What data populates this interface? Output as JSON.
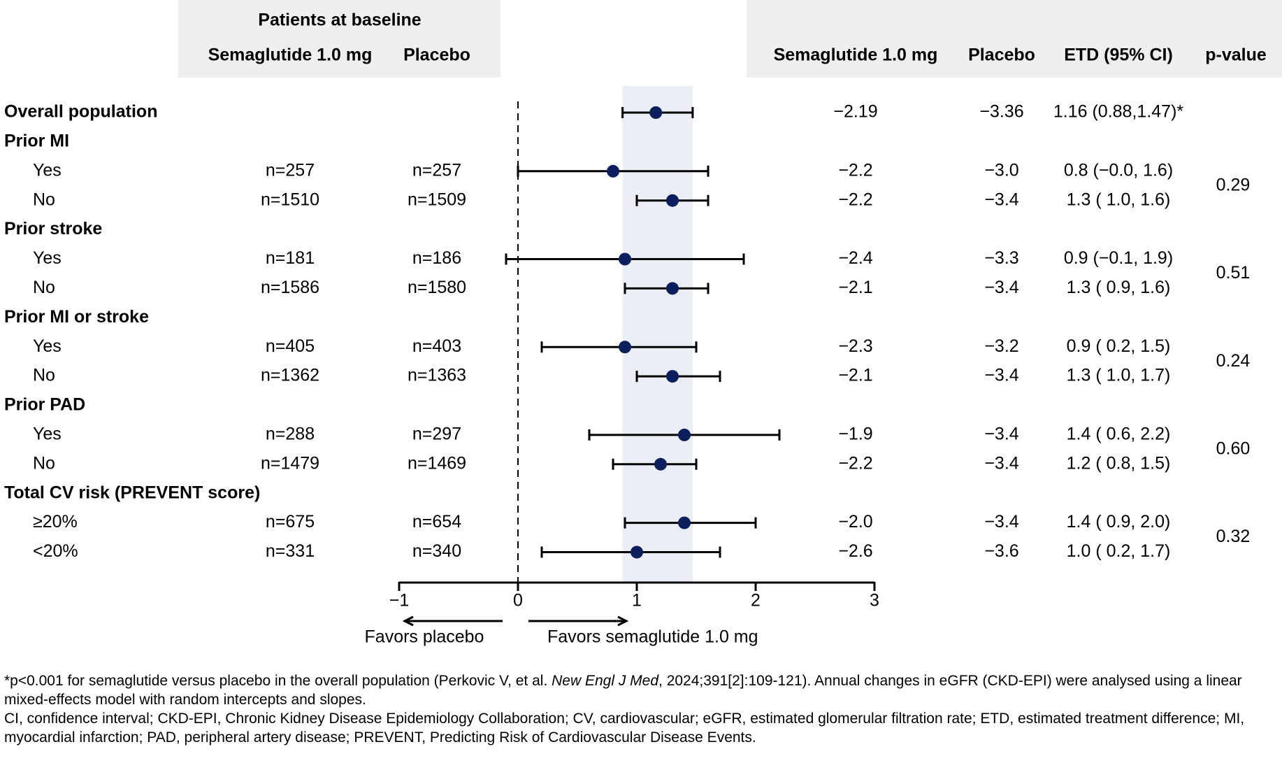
{
  "chart_data": {
    "type": "forest",
    "baseline_title": "Patients at baseline",
    "baseline_columns": [
      "Semaglutide 1.0 mg",
      "Placebo"
    ],
    "result_columns": [
      "Semaglutide 1.0 mg",
      "Placebo",
      "ETD (95% CI)",
      "p-value"
    ],
    "overall": {
      "label": "Overall population",
      "sema": "−2.19",
      "placebo": "−3.36",
      "etd": "1.16 (0.88,1.47)*",
      "est": 1.16,
      "ci": [
        0.88,
        1.47
      ]
    },
    "groups": [
      {
        "label": "Prior MI",
        "p_value": "0.29",
        "rows": [
          {
            "label": "Yes",
            "n_sema": "n=257",
            "n_placebo": "n=257",
            "sema": "−2.2",
            "placebo": "−3.0",
            "etd": "0.8 (−0.0, 1.6)",
            "est": 0.8,
            "ci": [
              0,
              1.6
            ]
          },
          {
            "label": "No",
            "n_sema": "n=1510",
            "n_placebo": "n=1509",
            "sema": "−2.2",
            "placebo": "−3.4",
            "etd": "1.3 ( 1.0, 1.6)",
            "est": 1.3,
            "ci": [
              1.0,
              1.6
            ]
          }
        ]
      },
      {
        "label": "Prior stroke",
        "p_value": "0.51",
        "rows": [
          {
            "label": "Yes",
            "n_sema": "n=181",
            "n_placebo": "n=186",
            "sema": "−2.4",
            "placebo": "−3.3",
            "etd": "0.9 (−0.1, 1.9)",
            "est": 0.9,
            "ci": [
              -0.1,
              1.9
            ]
          },
          {
            "label": "No",
            "n_sema": "n=1586",
            "n_placebo": "n=1580",
            "sema": "−2.1",
            "placebo": "−3.4",
            "etd": "1.3 ( 0.9, 1.6)",
            "est": 1.3,
            "ci": [
              0.9,
              1.6
            ]
          }
        ]
      },
      {
        "label": "Prior MI or stroke",
        "p_value": "0.24",
        "rows": [
          {
            "label": "Yes",
            "n_sema": "n=405",
            "n_placebo": "n=403",
            "sema": "−2.3",
            "placebo": "−3.2",
            "etd": "0.9 ( 0.2, 1.5)",
            "est": 0.9,
            "ci": [
              0.2,
              1.5
            ]
          },
          {
            "label": "No",
            "n_sema": "n=1362",
            "n_placebo": "n=1363",
            "sema": "−2.1",
            "placebo": "−3.4",
            "etd": "1.3 ( 1.0, 1.7)",
            "est": 1.3,
            "ci": [
              1.0,
              1.7
            ]
          }
        ]
      },
      {
        "label": "Prior PAD",
        "p_value": "0.60",
        "rows": [
          {
            "label": "Yes",
            "n_sema": "n=288",
            "n_placebo": "n=297",
            "sema": "−1.9",
            "placebo": "−3.4",
            "etd": "1.4 ( 0.6, 2.2)",
            "est": 1.4,
            "ci": [
              0.6,
              2.2
            ]
          },
          {
            "label": "No",
            "n_sema": "n=1479",
            "n_placebo": "n=1469",
            "sema": "−2.2",
            "placebo": "−3.4",
            "etd": "1.2 ( 0.8, 1.5)",
            "est": 1.2,
            "ci": [
              0.8,
              1.5
            ]
          }
        ]
      },
      {
        "label": "Total CV risk (PREVENT score)",
        "p_value": "0.32",
        "rows": [
          {
            "label": "≥20%",
            "n_sema": "n=675",
            "n_placebo": "n=654",
            "sema": "−2.0",
            "placebo": "−3.4",
            "etd": "1.4 ( 0.9, 2.0)",
            "est": 1.4,
            "ci": [
              0.9,
              2.0
            ]
          },
          {
            "label": "<20%",
            "n_sema": "n=331",
            "n_placebo": "n=340",
            "sema": "−2.6",
            "placebo": "−3.6",
            "etd": "1.0 ( 0.2, 1.7)",
            "est": 1.0,
            "ci": [
              0.2,
              1.7
            ]
          }
        ]
      }
    ],
    "xlim": [
      -1,
      3
    ],
    "xticks": [
      {
        "value": -1,
        "label": "−1"
      },
      0,
      1,
      2,
      3
    ],
    "reference_line": 0,
    "favors_left": "Favors placebo",
    "favors_right": "Favors semaglutide 1.0 mg",
    "marker_color": "#0b1f5e",
    "band_color": "#eceef5",
    "header_color": "#efefef",
    "footnote": [
      "*p<0.001 for semaglutide versus placebo in the overall population (Perkovic V, et al. ",
      "New Engl J Med",
      ", 2024;391[2]:109-121). Annual changes in eGFR (CKD-EPI) were analysed using a linear mixed-effects model with random intercepts and slopes."
    ],
    "abbreviations": "CI, confidence interval; CKD-EPI, Chronic Kidney Disease Epidemiology Collaboration; CV, cardiovascular; eGFR, estimated glomerular filtration rate; ETD, estimated treatment difference; MI, myocardial infarction; PAD, peripheral artery disease; PREVENT, Predicting Risk of Cardiovascular Disease Events."
  }
}
